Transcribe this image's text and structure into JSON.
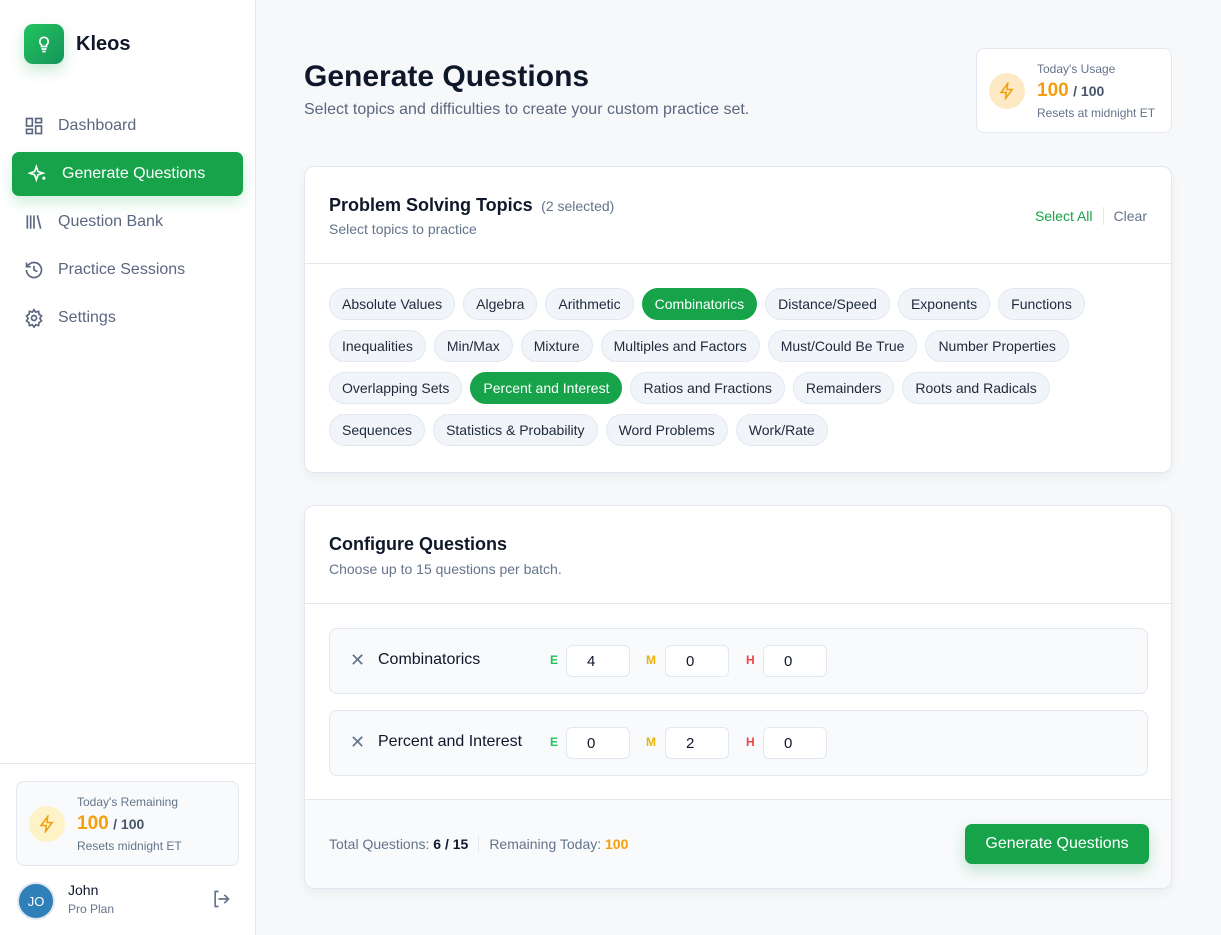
{
  "app": {
    "name": "Kleos"
  },
  "sidebar": {
    "items": [
      {
        "label": "Dashboard",
        "icon": "grid-icon"
      },
      {
        "label": "Generate Questions",
        "icon": "sparkles-icon",
        "active": true
      },
      {
        "label": "Question Bank",
        "icon": "library-icon"
      },
      {
        "label": "Practice Sessions",
        "icon": "history-icon"
      },
      {
        "label": "Settings",
        "icon": "gear-icon"
      }
    ],
    "remaining": {
      "label": "Today's Remaining",
      "value": "100",
      "total": "/ 100",
      "note": "Resets midnight ET"
    },
    "user": {
      "initials": "JO",
      "name": "John",
      "plan": "Pro Plan"
    }
  },
  "header": {
    "title": "Generate Questions",
    "subtitle": "Select topics and difficulties to create your custom practice set."
  },
  "usage": {
    "label": "Today's Usage",
    "value": "100",
    "total": "/ 100",
    "note": "Resets at midnight ET"
  },
  "topics": {
    "title": "Problem Solving Topics",
    "count": "(2 selected)",
    "subtitle": "Select topics to practice",
    "select_all": "Select All",
    "clear": "Clear",
    "items": [
      {
        "label": "Absolute Values"
      },
      {
        "label": "Algebra"
      },
      {
        "label": "Arithmetic"
      },
      {
        "label": "Combinatorics",
        "selected": true
      },
      {
        "label": "Distance/Speed"
      },
      {
        "label": "Exponents"
      },
      {
        "label": "Functions"
      },
      {
        "label": "Inequalities"
      },
      {
        "label": "Min/Max"
      },
      {
        "label": "Mixture"
      },
      {
        "label": "Multiples and Factors"
      },
      {
        "label": "Must/Could Be True"
      },
      {
        "label": "Number Properties"
      },
      {
        "label": "Overlapping Sets"
      },
      {
        "label": "Percent and Interest",
        "selected": true
      },
      {
        "label": "Ratios and Fractions"
      },
      {
        "label": "Remainders"
      },
      {
        "label": "Roots and Radicals"
      },
      {
        "label": "Sequences"
      },
      {
        "label": "Statistics & Probability"
      },
      {
        "label": "Word Problems"
      },
      {
        "label": "Work/Rate"
      }
    ]
  },
  "configure": {
    "title": "Configure Questions",
    "subtitle": "Choose up to 15 questions per batch.",
    "levels": {
      "easy": "E",
      "medium": "M",
      "hard": "H"
    },
    "rows": [
      {
        "topic": "Combinatorics",
        "easy": "4",
        "medium": "0",
        "hard": "0"
      },
      {
        "topic": "Percent and Interest",
        "easy": "0",
        "medium": "2",
        "hard": "0"
      }
    ],
    "total_label": "Total Questions:",
    "total_value": "6 / 15",
    "remaining_label": "Remaining Today:",
    "remaining_value": "100",
    "generate": "Generate Questions"
  },
  "colors": {
    "accent": "#16a34a",
    "warning": "#f59e0b",
    "easy": "#22c55e",
    "medium": "#eab308",
    "hard": "#ef4444"
  }
}
